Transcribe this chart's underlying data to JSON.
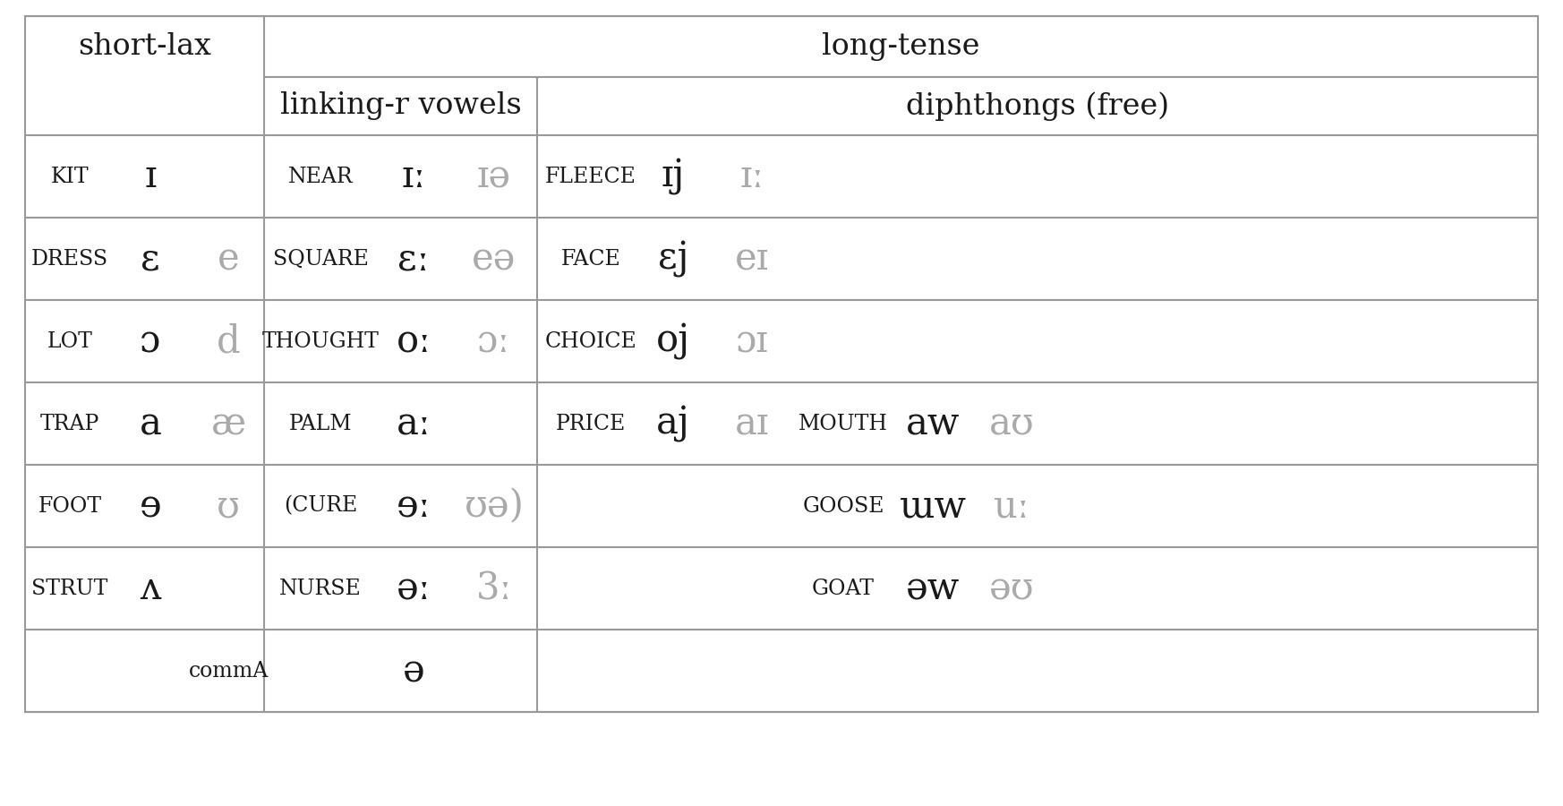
{
  "bg_color": "#ffffff",
  "border_color": "#999999",
  "text_color_dark": "#1a1a1a",
  "text_color_light": "#aaaaaa",
  "header1_row": {
    "short_lax": "short-lax",
    "long_tense": "long-tense"
  },
  "header2_row": {
    "linking_r": "linking-r vowels",
    "diphthongs": "diphthongs (free)"
  },
  "data_rows": [
    {
      "word1": "KIT",
      "sym1": "ɪ",
      "sym1b": "",
      "word2": "NEAR",
      "sym2": "ɪː",
      "sym2b": "ɪə",
      "word3": "FLEECE",
      "sym3": "ɪj",
      "sym3b": "ɪː",
      "word4": "",
      "sym4": "",
      "sym4b": ""
    },
    {
      "word1": "DRESS",
      "sym1": "ɛ",
      "sym1b": "e",
      "word2": "SQUARE",
      "sym2": "ɛː",
      "sym2b": "eə",
      "word3": "FACE",
      "sym3": "ɛj",
      "sym3b": "eɪ",
      "word4": "",
      "sym4": "",
      "sym4b": ""
    },
    {
      "word1": "LOT",
      "sym1": "ɔ",
      "sym1b": "d",
      "word2": "THOUGHT",
      "sym2": "oː",
      "sym2b": "ɔː",
      "word3": "CHOICE",
      "sym3": "oj",
      "sym3b": "ɔɪ",
      "word4": "",
      "sym4": "",
      "sym4b": ""
    },
    {
      "word1": "TRAP",
      "sym1": "a",
      "sym1b": "æ",
      "word2": "PALM",
      "sym2": "aː",
      "sym2b": "",
      "word3": "PRICE",
      "sym3": "aj",
      "sym3b": "aɪ",
      "word4": "MOUTH",
      "sym4": "aw",
      "sym4b": "aʊ"
    },
    {
      "word1": "FOOT",
      "sym1": "ɘ",
      "sym1b": "ʊ",
      "word2": "(CURE",
      "sym2": "ɘː",
      "sym2b": "ʊə)",
      "word3": "",
      "sym3": "",
      "sym3b": "",
      "word4": "GOOSE",
      "sym4": "ɯw",
      "sym4b": "uː"
    },
    {
      "word1": "STRUT",
      "sym1": "ʌ",
      "sym1b": "",
      "word2": "NURSE",
      "sym2": "əː",
      "sym2b": "3ː",
      "word3": "",
      "sym3": "",
      "sym3b": "",
      "word4": "GOAT",
      "sym4": "əw",
      "sym4b": "əʊ"
    },
    {
      "word1": "",
      "sym1": "",
      "sym1b": "commA",
      "word2": "ə",
      "sym2": "",
      "sym2b": "",
      "word3": "",
      "sym3": "",
      "sym3b": "",
      "word4": "",
      "sym4": "",
      "sym4b": ""
    }
  ]
}
